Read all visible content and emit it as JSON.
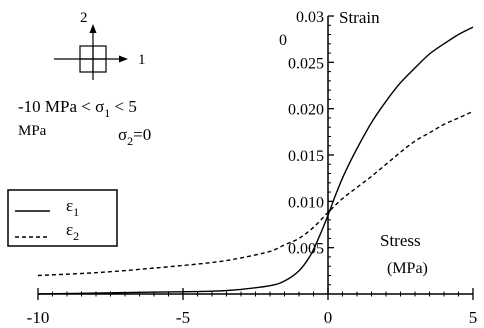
{
  "chart_data": {
    "type": "line",
    "xlabel": [
      "Stress",
      "(MPa)"
    ],
    "ylabel": "Strain",
    "xlim": [
      -10,
      5
    ],
    "ylim": [
      0,
      0.03
    ],
    "x_ticks": [
      -10,
      -5,
      0,
      5
    ],
    "x_tick_labels": [
      "-10",
      "-5",
      "0",
      "5"
    ],
    "y_ticks": [
      0.005,
      0.01,
      0.015,
      0.02,
      0.025,
      0.03
    ],
    "y_tick_labels": [
      "0.005",
      "0.010",
      "0.015",
      "0.020",
      "0.025",
      "0.03"
    ],
    "y_top_extra_label": "0",
    "grid": false,
    "legend_position": "left-middle",
    "series": [
      {
        "name": "ε1",
        "dash": "solid",
        "x": [
          -10,
          -8,
          -6,
          -4,
          -3,
          -2,
          -1.5,
          -1,
          -0.6,
          -0.3,
          0,
          0.3,
          0.6,
          1,
          1.5,
          2,
          2.5,
          3,
          3.5,
          4,
          4.5,
          5
        ],
        "y": [
          0.0,
          0.0001,
          0.0002,
          0.0003,
          0.0005,
          0.0009,
          0.0014,
          0.0025,
          0.0042,
          0.0062,
          0.0085,
          0.011,
          0.0132,
          0.0157,
          0.0185,
          0.0208,
          0.0228,
          0.0244,
          0.0259,
          0.027,
          0.028,
          0.0288
        ]
      },
      {
        "name": "ε2",
        "dash": "dashed",
        "x": [
          -10,
          -8,
          -6,
          -4,
          -3,
          -2,
          -1.5,
          -1,
          -0.5,
          0,
          0.5,
          1,
          1.5,
          2,
          2.5,
          3,
          3.5,
          4,
          4.5,
          5
        ],
        "y": [
          0.002,
          0.0023,
          0.0028,
          0.0034,
          0.0039,
          0.0046,
          0.0053,
          0.006,
          0.0072,
          0.0088,
          0.0103,
          0.0115,
          0.0127,
          0.014,
          0.0153,
          0.0165,
          0.0174,
          0.0183,
          0.019,
          0.0197
        ]
      }
    ],
    "annotations": {
      "axis_2": "2",
      "axis_1": "1",
      "range_line1": "-10 MPa < σ",
      "range_line1_sub": "1",
      "range_line1_end": " < 5",
      "range_line2": "MPa",
      "sigma2_main": "σ",
      "sigma2_sub": "2",
      "sigma2_end": "=0"
    },
    "legend": {
      "e1_symbol": "ε",
      "e1_sub": "1",
      "e2_symbol": "ε",
      "e2_sub": "2"
    }
  }
}
